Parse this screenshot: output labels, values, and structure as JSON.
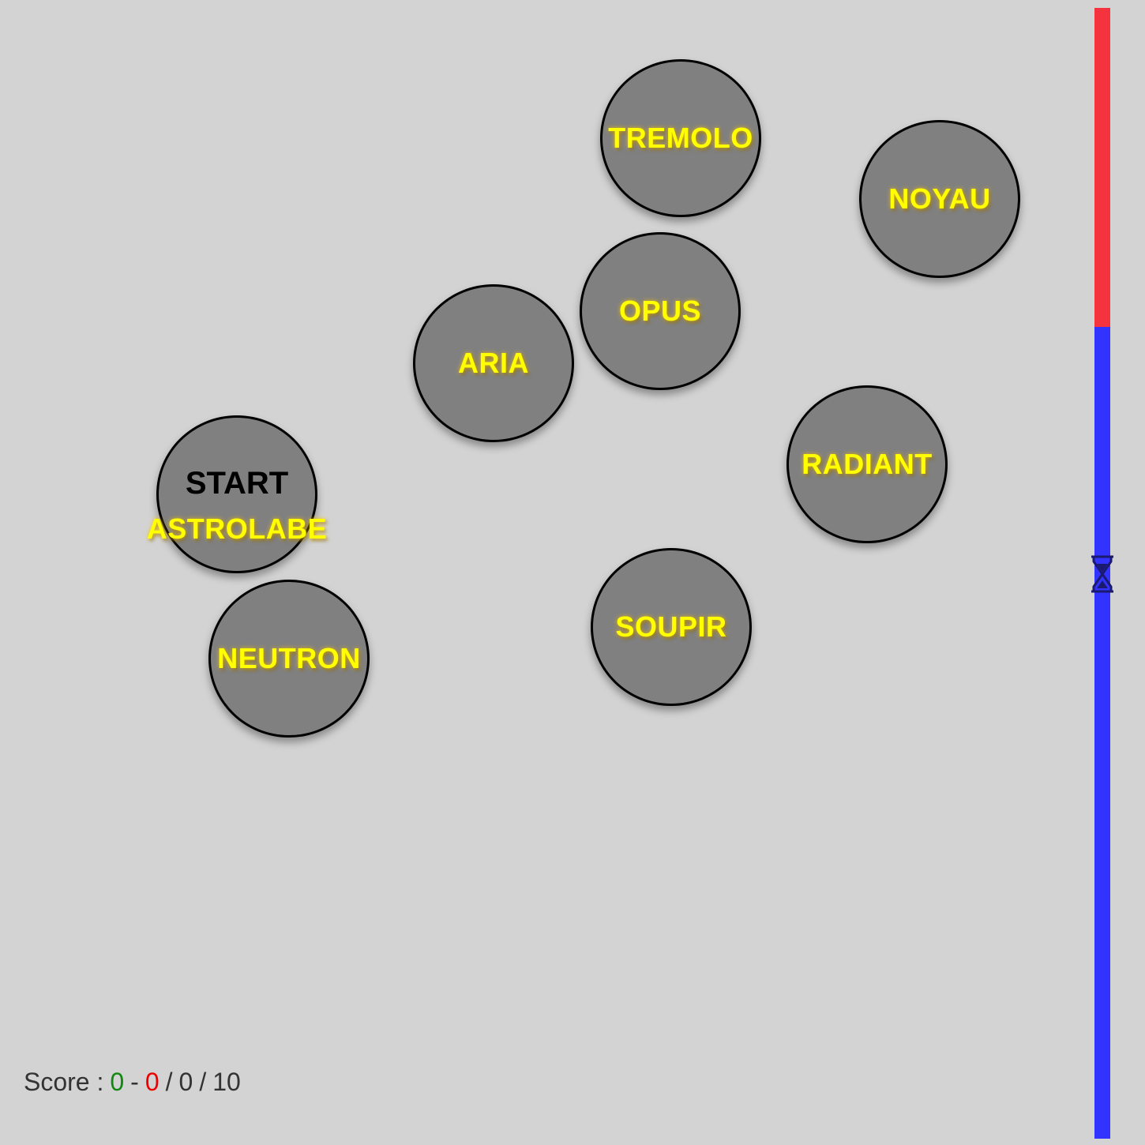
{
  "start_label": "START",
  "bubbles": {
    "tremolo": "TREMOLO",
    "noyau": "NOYAU",
    "opus": "OPUS",
    "aria": "ARIA",
    "radiant": "RADIANT",
    "astrolabe": "ASTROLABE",
    "neutron": "NEUTRON",
    "soupir": "SOUPIR"
  },
  "timer": {
    "elapsed_fraction": 0.282,
    "elapsed_color": "#f5333f",
    "remaining_color": "#3333ff",
    "icon": "hourglass-icon"
  },
  "score": {
    "label": "Score :",
    "correct": "0",
    "separator": "-",
    "wrong": "0",
    "slash1": "/",
    "answered": "0",
    "slash2": "/",
    "total": "10"
  },
  "colors": {
    "background": "#d3d3d3",
    "bubble": "#808080",
    "word": "#ffff00"
  }
}
